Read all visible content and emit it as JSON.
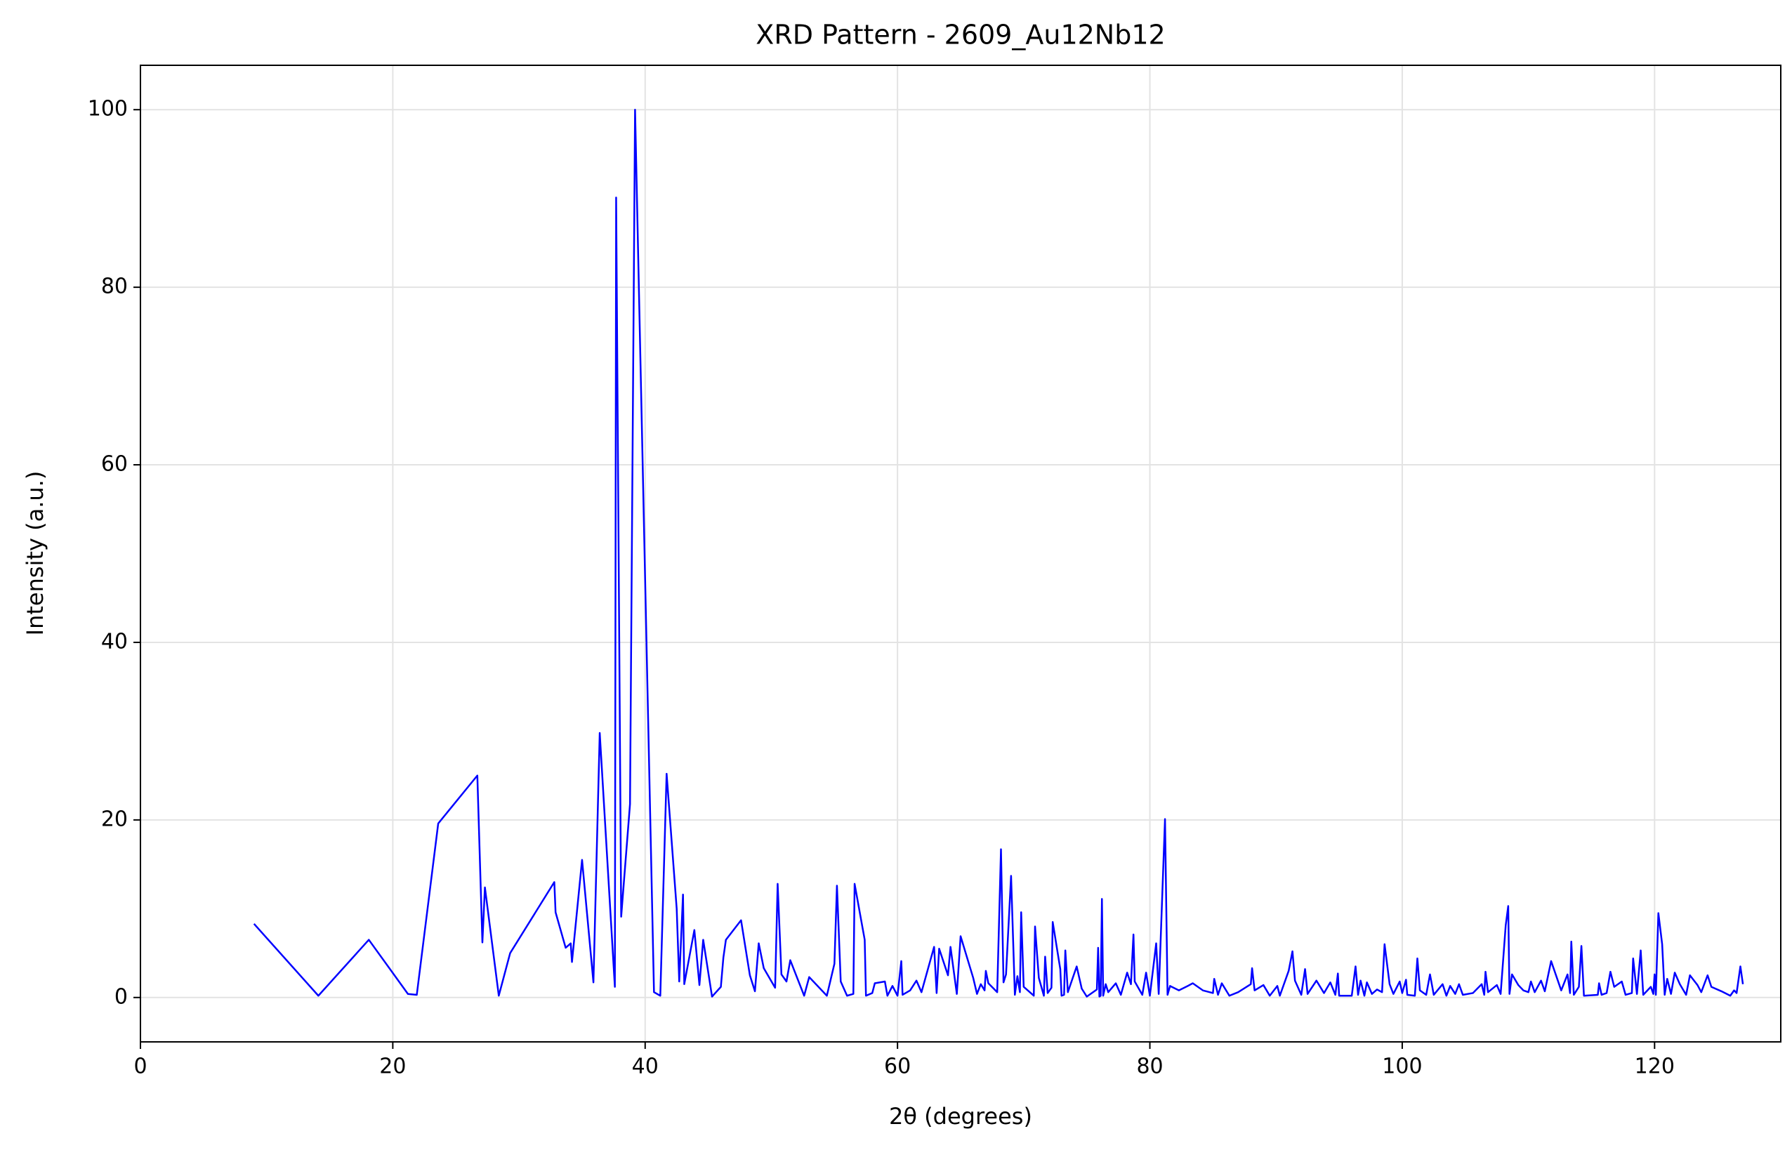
{
  "chart_data": {
    "type": "line",
    "title": "XRD Pattern - 2609_Au12Nb12",
    "x_label": "2θ (degrees)",
    "y_label": "Intensity (a.u.)",
    "x": [
      9.0,
      14.1,
      18.1,
      21.2,
      21.9,
      23.6,
      26.7,
      27.1,
      27.3,
      28.4,
      29.3,
      32.8,
      32.9,
      33.7,
      34.1,
      34.2,
      35.0,
      35.9,
      36.4,
      37.6,
      37.7,
      38.1,
      38.8,
      39.2,
      40.7,
      41.2,
      41.7,
      42.5,
      42.7,
      43.0,
      43.1,
      43.9,
      44.3,
      44.6,
      45.3,
      46.0,
      46.2,
      46.4,
      47.6,
      48.3,
      48.7,
      49.0,
      49.4,
      50.3,
      50.5,
      50.8,
      51.2,
      51.5,
      52.6,
      53.0,
      54.4,
      55.0,
      55.2,
      55.5,
      56.0,
      56.5,
      56.6,
      57.4,
      57.5,
      58.0,
      58.2,
      59.0,
      59.2,
      59.6,
      60.0,
      60.3,
      60.4,
      61.0,
      61.5,
      61.9,
      62.9,
      63.1,
      63.3,
      64.0,
      64.2,
      64.7,
      65.0,
      66.0,
      66.3,
      66.6,
      66.9,
      67.0,
      67.2,
      67.9,
      68.2,
      68.4,
      68.6,
      69.0,
      69.3,
      69.5,
      69.7,
      69.8,
      70.0,
      70.8,
      70.9,
      71.2,
      71.6,
      71.7,
      71.9,
      72.2,
      72.3,
      72.9,
      73.0,
      73.2,
      73.3,
      73.5,
      74.2,
      74.6,
      75.0,
      75.8,
      75.9,
      76.0,
      76.1,
      76.2,
      76.3,
      76.5,
      76.7,
      77.3,
      77.7,
      78.2,
      78.5,
      78.7,
      78.8,
      79.4,
      79.7,
      80.0,
      80.5,
      80.7,
      81.2,
      81.4,
      81.6,
      82.3,
      83.0,
      83.4,
      84.2,
      85.0,
      85.1,
      85.4,
      85.7,
      86.3,
      87.0,
      88.0,
      88.1,
      88.3,
      89.0,
      89.5,
      90.1,
      90.3,
      91.0,
      91.3,
      91.5,
      92.0,
      92.3,
      92.5,
      93.2,
      93.8,
      94.3,
      94.7,
      94.9,
      95.0,
      96.0,
      96.3,
      96.5,
      96.7,
      97.0,
      97.2,
      97.6,
      98.0,
      98.4,
      98.6,
      99.0,
      99.3,
      99.8,
      100.0,
      100.3,
      100.4,
      101.0,
      101.2,
      101.4,
      101.9,
      102.2,
      102.5,
      103.2,
      103.5,
      103.8,
      104.2,
      104.5,
      104.8,
      105.6,
      106.3,
      106.5,
      106.6,
      106.8,
      107.5,
      107.8,
      108.2,
      108.4,
      108.5,
      108.7,
      109.2,
      109.6,
      110.0,
      110.2,
      110.5,
      111.0,
      111.3,
      111.8,
      112.6,
      113.1,
      113.3,
      113.4,
      113.6,
      114.0,
      114.2,
      114.4,
      115.5,
      115.6,
      115.8,
      116.2,
      116.5,
      116.8,
      117.4,
      117.7,
      118.2,
      118.3,
      118.6,
      118.9,
      119.1,
      119.7,
      119.9,
      120.0,
      120.1,
      120.3,
      120.6,
      120.8,
      121.0,
      121.3,
      121.6,
      122.0,
      122.5,
      122.8,
      123.4,
      123.7,
      124.2,
      124.5,
      125.3,
      126.0,
      126.3,
      126.5,
      126.8,
      127.0
    ],
    "values": [
      8.3,
      0.2,
      6.5,
      0.4,
      0.3,
      19.6,
      25.0,
      6.2,
      12.4,
      0.2,
      5.0,
      13.0,
      9.6,
      5.6,
      6.1,
      4.0,
      15.5,
      1.7,
      29.8,
      1.2,
      90.1,
      9.1,
      21.8,
      100,
      0.6,
      0.2,
      25.2,
      10.0,
      1.8,
      11.6,
      1.5,
      7.6,
      1.4,
      6.5,
      0.1,
      1.2,
      4.5,
      6.5,
      8.7,
      2.5,
      0.7,
      6.1,
      3.3,
      1.1,
      12.8,
      2.6,
      1.8,
      4.2,
      0.2,
      2.3,
      0.2,
      3.8,
      12.6,
      1.8,
      0.2,
      0.4,
      12.8,
      6.5,
      0.2,
      0.5,
      1.6,
      1.8,
      0.2,
      1.3,
      0.2,
      4.1,
      0.3,
      0.8,
      1.9,
      0.6,
      5.7,
      0.5,
      5.5,
      2.5,
      5.7,
      0.4,
      6.9,
      2.2,
      0.4,
      1.5,
      0.8,
      3.0,
      1.6,
      0.6,
      16.7,
      1.7,
      2.6,
      13.7,
      0.3,
      2.4,
      0.6,
      9.6,
      1.2,
      0.2,
      8.0,
      2.2,
      0.2,
      4.6,
      0.5,
      1.1,
      8.5,
      3.2,
      0.2,
      0.3,
      5.3,
      0.6,
      3.5,
      1.0,
      0.1,
      0.9,
      5.6,
      0.1,
      0.2,
      11.1,
      0.2,
      1.5,
      0.6,
      1.6,
      0.3,
      2.8,
      1.5,
      7.1,
      1.8,
      0.3,
      2.8,
      0.2,
      6.1,
      0.4,
      20.1,
      0.3,
      1.3,
      0.8,
      1.3,
      1.6,
      0.8,
      0.5,
      2.1,
      0.3,
      1.6,
      0.2,
      0.6,
      1.5,
      3.3,
      0.8,
      1.4,
      0.2,
      1.3,
      0.2,
      3.0,
      5.2,
      1.9,
      0.3,
      3.2,
      0.4,
      1.9,
      0.5,
      1.7,
      0.3,
      2.7,
      0.2,
      0.2,
      3.5,
      0.3,
      1.9,
      0.2,
      1.7,
      0.4,
      0.9,
      0.6,
      6.0,
      1.5,
      0.4,
      1.8,
      0.5,
      2.0,
      0.3,
      0.2,
      4.4,
      0.8,
      0.3,
      2.6,
      0.3,
      1.5,
      0.2,
      1.3,
      0.4,
      1.5,
      0.3,
      0.5,
      1.5,
      0.3,
      2.9,
      0.6,
      1.4,
      0.4,
      8.1,
      10.3,
      0.4,
      2.6,
      1.4,
      0.8,
      0.6,
      1.8,
      0.6,
      1.9,
      0.7,
      4.1,
      0.8,
      2.6,
      0.5,
      6.3,
      0.3,
      1.2,
      5.8,
      0.2,
      0.3,
      1.6,
      0.3,
      0.5,
      2.9,
      1.2,
      1.8,
      0.3,
      0.5,
      4.4,
      0.4,
      5.3,
      0.3,
      1.2,
      0.4,
      2.6,
      0.3,
      9.5,
      6.0,
      0.3,
      2.1,
      0.4,
      2.8,
      1.5,
      0.3,
      2.5,
      1.4,
      0.6,
      2.5,
      1.2,
      0.7,
      0.2,
      0.8,
      0.5,
      3.5,
      1.5
    ],
    "color": "#0000ff",
    "xlim": [
      0,
      130
    ],
    "ylim": [
      -5,
      105
    ],
    "xticks": [
      0,
      20,
      40,
      60,
      80,
      100,
      120
    ],
    "yticks": [
      0,
      20,
      40,
      60,
      80,
      100
    ],
    "grid": true
  }
}
